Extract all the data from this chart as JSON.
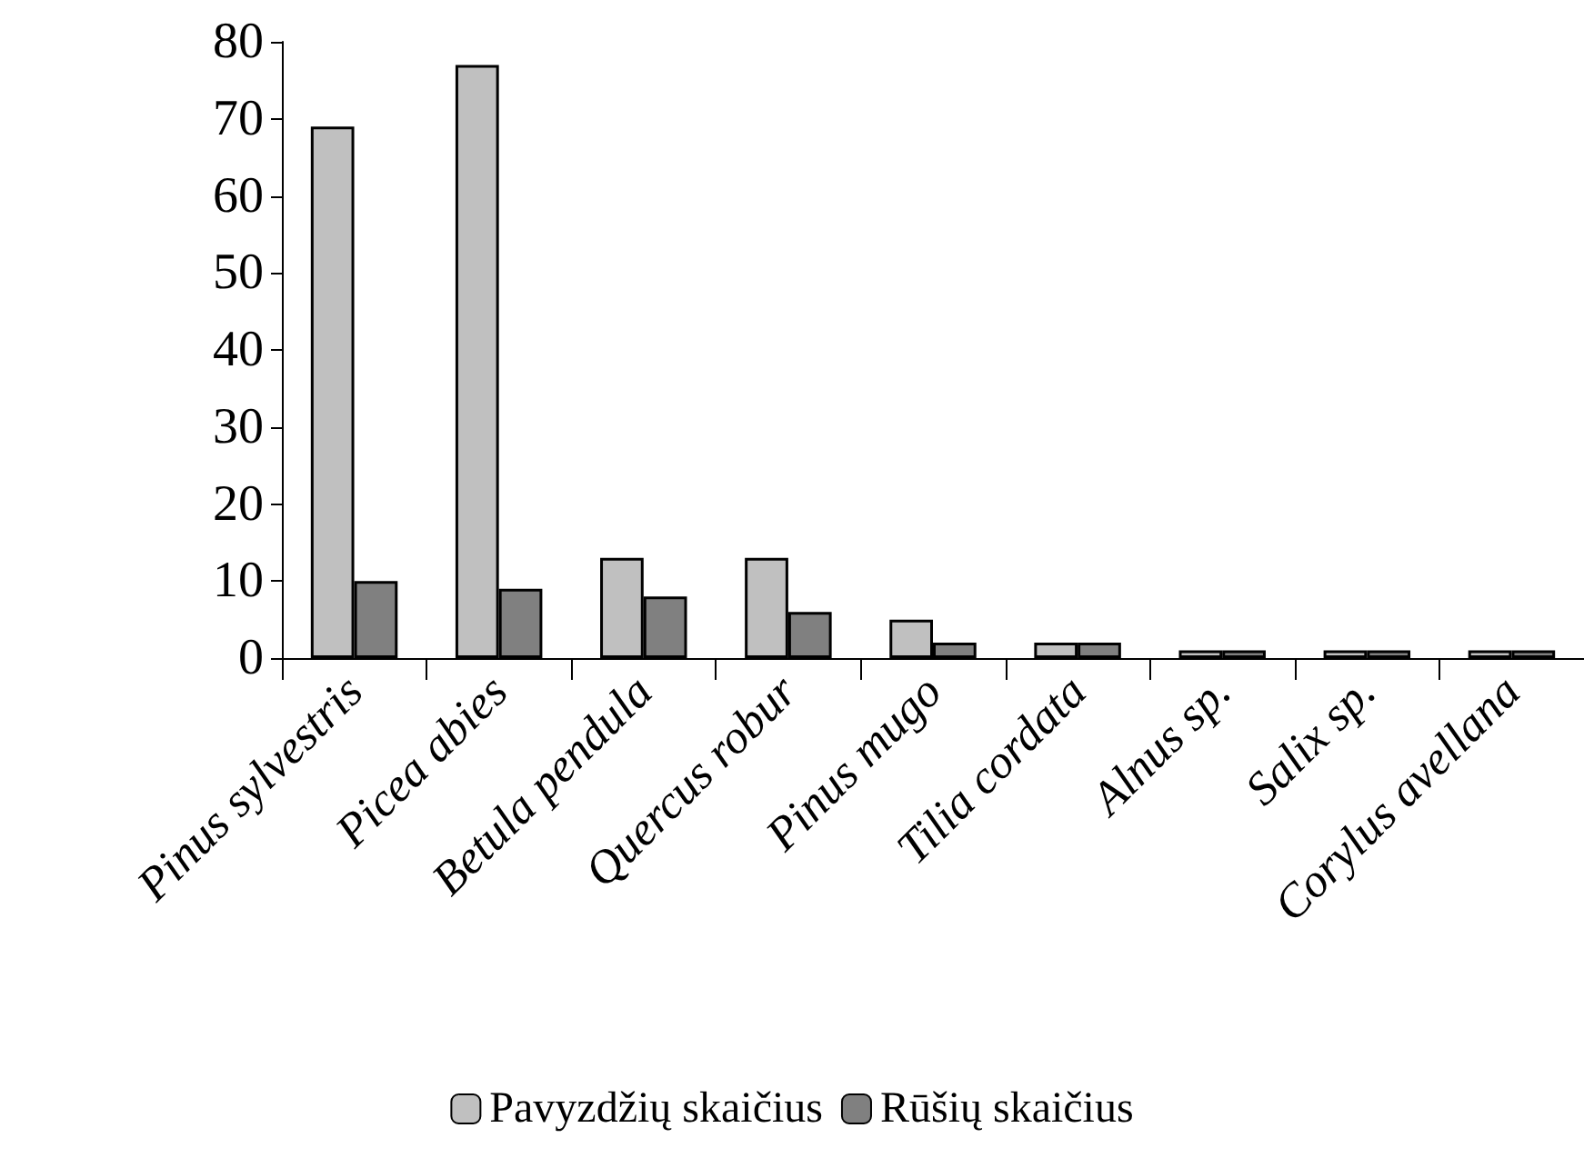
{
  "chart_data": {
    "type": "bar",
    "categories": [
      "Pinus sylvestris",
      "Picea abies",
      "Betula pendula",
      "Quercus robur",
      "Pinus mugo",
      "Tilia cordata",
      "Alnus sp.",
      "Salix sp.",
      "Corylus avellana"
    ],
    "series": [
      {
        "name": "Pavyzdžių skaičius",
        "color": "#c0c0c0",
        "values": [
          69,
          77,
          13,
          13,
          5,
          2,
          1,
          1,
          1
        ]
      },
      {
        "name": "Rūšių skaičius",
        "color": "#808080",
        "values": [
          10,
          9,
          8,
          6,
          2,
          2,
          1,
          1,
          1
        ]
      }
    ],
    "ylim": [
      0,
      80
    ],
    "yticks": [
      0,
      10,
      20,
      30,
      40,
      50,
      60,
      70,
      80
    ],
    "grid": false,
    "legend": "bottom"
  }
}
